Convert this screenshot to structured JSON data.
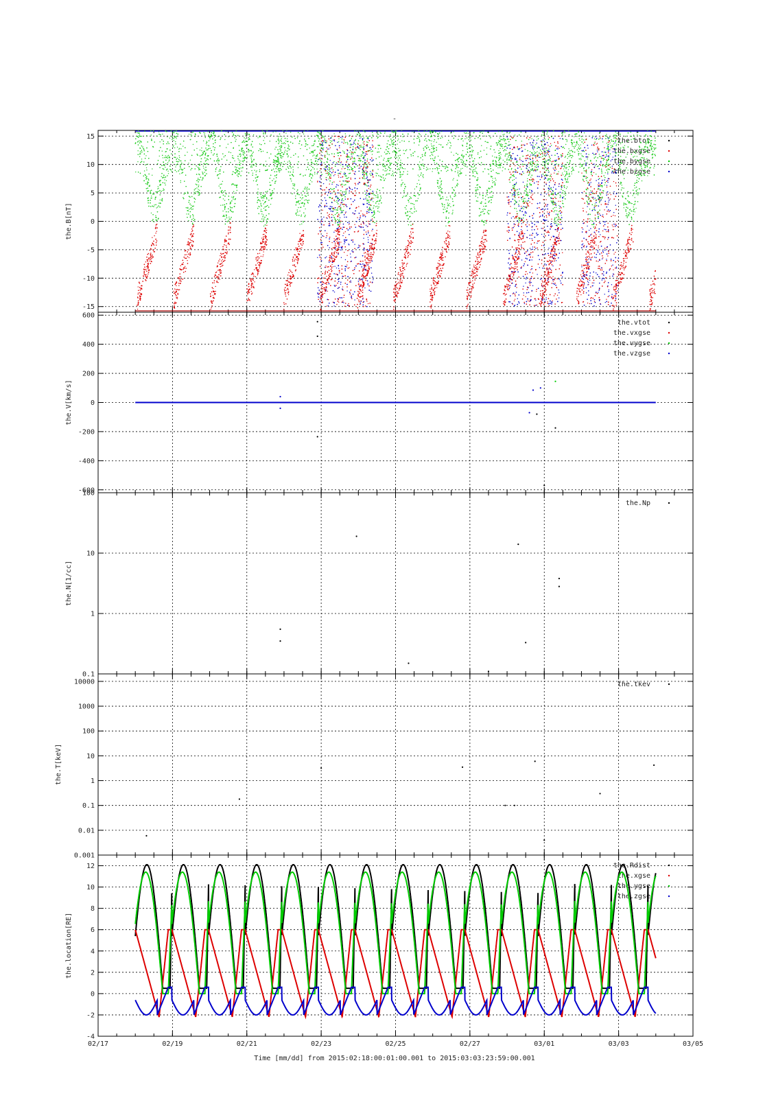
{
  "title": "-",
  "xaxis": {
    "label": "Time [mm/dd]  from 2015:02:18:00:01:00.001  to  2015:03:03:23:59:00.001",
    "range": [
      "02/17",
      "03/05"
    ],
    "ticks": [
      "02/17",
      "02/19",
      "02/21",
      "02/23",
      "02/25",
      "02/27",
      "03/01",
      "03/03",
      "03/05"
    ]
  },
  "chart_data": [
    {
      "type": "scatter",
      "ylabel": "the.B[nT]",
      "ylim": [
        -16,
        16
      ],
      "yticks": [
        15,
        10,
        5,
        0,
        -5,
        -10,
        -15
      ],
      "ytick_labels": [
        "15",
        "10",
        "5",
        "0",
        "-5",
        "-10",
        "-15"
      ],
      "grid": true,
      "legend_position": "top-right",
      "series": [
        {
          "name": "the.btot",
          "color": "#000000"
        },
        {
          "name": "the.bxgse",
          "color": "#dd0000"
        },
        {
          "name": "the.bygse",
          "color": "#00cc00"
        },
        {
          "name": "the.bzgse",
          "color": "#0000cc"
        }
      ]
    },
    {
      "type": "scatter",
      "ylabel": "the.V[km/s]",
      "ylim": [
        -620,
        620
      ],
      "yticks": [
        600,
        400,
        200,
        0,
        -200,
        -400,
        -600
      ],
      "ytick_labels": [
        "600",
        "400",
        "200",
        "0",
        "-200",
        "-400",
        "-600"
      ],
      "grid": true,
      "legend_position": "top-right",
      "series": [
        {
          "name": "the.vtot",
          "color": "#000000"
        },
        {
          "name": "the.vxgse",
          "color": "#dd0000"
        },
        {
          "name": "the.vygse",
          "color": "#00cc00"
        },
        {
          "name": "the.vzgse",
          "color": "#0000cc"
        }
      ],
      "scatter_points": [
        {
          "x": 22.9,
          "y": 555,
          "color": "#000000"
        },
        {
          "x": 22.9,
          "y": 455,
          "color": "#000000"
        },
        {
          "x": 22.9,
          "y": -235,
          "color": "#000000"
        },
        {
          "x": 21.9,
          "y": 40,
          "color": "#0000cc"
        },
        {
          "x": 21.9,
          "y": -40,
          "color": "#0000cc"
        },
        {
          "x": 28.7,
          "y": 85,
          "color": "#0000cc"
        },
        {
          "x": 28.9,
          "y": 100,
          "color": "#0000cc"
        },
        {
          "x": 29.3,
          "y": 145,
          "color": "#00cc00"
        },
        {
          "x": 28.6,
          "y": -70,
          "color": "#0000cc"
        },
        {
          "x": 28.8,
          "y": -80,
          "color": "#000000"
        },
        {
          "x": 29.3,
          "y": -175,
          "color": "#000000"
        },
        {
          "x": 29.0,
          "y": -570,
          "color": "#000000"
        }
      ]
    },
    {
      "type": "scatter",
      "ylabel": "the.N[1/cc]",
      "yscale": "log",
      "ylim": [
        0.1,
        100
      ],
      "yticks": [
        100,
        10,
        1,
        0.1
      ],
      "ytick_labels": [
        "100",
        "10",
        "1",
        "0.1"
      ],
      "grid": true,
      "legend_position": "top-right",
      "series": [
        {
          "name": "the.Np",
          "color": "#000000"
        }
      ],
      "scatter_points": [
        {
          "x": 21.9,
          "y": 0.55
        },
        {
          "x": 21.9,
          "y": 0.35
        },
        {
          "x": 23.95,
          "y": 19
        },
        {
          "x": 25.35,
          "y": 0.15
        },
        {
          "x": 27.5,
          "y": 0.11
        },
        {
          "x": 28.3,
          "y": 14
        },
        {
          "x": 28.5,
          "y": 0.33
        },
        {
          "x": 29.4,
          "y": 3.8
        },
        {
          "x": 29.4,
          "y": 2.8
        }
      ]
    },
    {
      "type": "scatter",
      "ylabel": "the.T[keV]",
      "yscale": "log",
      "ylim": [
        0.001,
        20000
      ],
      "yticks": [
        10000,
        1000,
        100,
        10,
        1,
        0.1,
        0.01,
        0.001
      ],
      "ytick_labels": [
        "10000",
        "1000",
        "100",
        "10",
        "1",
        "0.1",
        "0.01",
        "0.001"
      ],
      "grid": true,
      "legend_position": "top-right",
      "series": [
        {
          "name": "the.tkev",
          "color": "#000000"
        }
      ],
      "scatter_points": [
        {
          "x": 18.3,
          "y": 0.006
        },
        {
          "x": 20.8,
          "y": 0.18
        },
        {
          "x": 23.0,
          "y": 3.2
        },
        {
          "x": 26.8,
          "y": 3.5
        },
        {
          "x": 27.95,
          "y": 0.1
        },
        {
          "x": 28.2,
          "y": 0.1
        },
        {
          "x": 28.75,
          "y": 6
        },
        {
          "x": 29.0,
          "y": 0.004
        },
        {
          "x": 30.5,
          "y": 0.3
        },
        {
          "x": 31.95,
          "y": 4.2
        }
      ]
    },
    {
      "type": "line",
      "ylabel": "the.location[RE]",
      "ylim": [
        -4,
        13
      ],
      "yticks": [
        12,
        10,
        8,
        6,
        4,
        2,
        0,
        -2,
        -4
      ],
      "ytick_labels": [
        "12",
        "10",
        "8",
        "6",
        "4",
        "2",
        "0",
        "-2",
        "-4"
      ],
      "grid": true,
      "legend_position": "top-right",
      "orbit_period_days": 0.985,
      "series": [
        {
          "name": "the.Rdist",
          "color": "#000000",
          "max": 12.1,
          "min": 0.5
        },
        {
          "name": "the.xgse",
          "color": "#dd0000",
          "max": 6.0,
          "min": -2.2
        },
        {
          "name": "the.ygse",
          "color": "#00cc00",
          "max": 11.4,
          "min": 0.0
        },
        {
          "name": "the.zgse",
          "color": "#0000cc",
          "max": 0.6,
          "min": -2.0
        }
      ]
    }
  ]
}
